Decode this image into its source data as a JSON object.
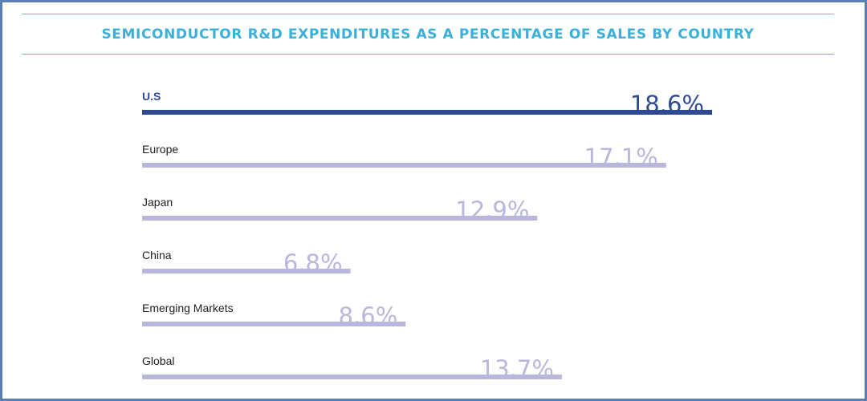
{
  "title": "SEMICONDUCTOR R&D EXPENDITURES AS A PERCENTAGE OF SALES BY COUNTRY",
  "colors": {
    "highlight": "#2e4a95",
    "bar": "#b9b7dc",
    "title": "#3ab0da",
    "rule": "#5ec0de",
    "frame": "#5b7fb4"
  },
  "chart_data": {
    "type": "bar",
    "orientation": "horizontal",
    "categories": [
      "U.S",
      "Europe",
      "Japan",
      "China",
      "Emerging Markets",
      "Global"
    ],
    "values": [
      18.6,
      17.1,
      12.9,
      6.8,
      8.6,
      13.7
    ],
    "labels": [
      "18.6%",
      "17.1%",
      "12.9%",
      "6.8%",
      "8.6%",
      "13.7%"
    ],
    "highlight": "U.S",
    "title": "SEMICONDUCTOR R&D EXPENDITURES AS A PERCENTAGE OF SALES BY COUNTRY",
    "xlabel": "",
    "ylabel": "",
    "unit": "%",
    "xlim": [
      0,
      18.6
    ]
  }
}
